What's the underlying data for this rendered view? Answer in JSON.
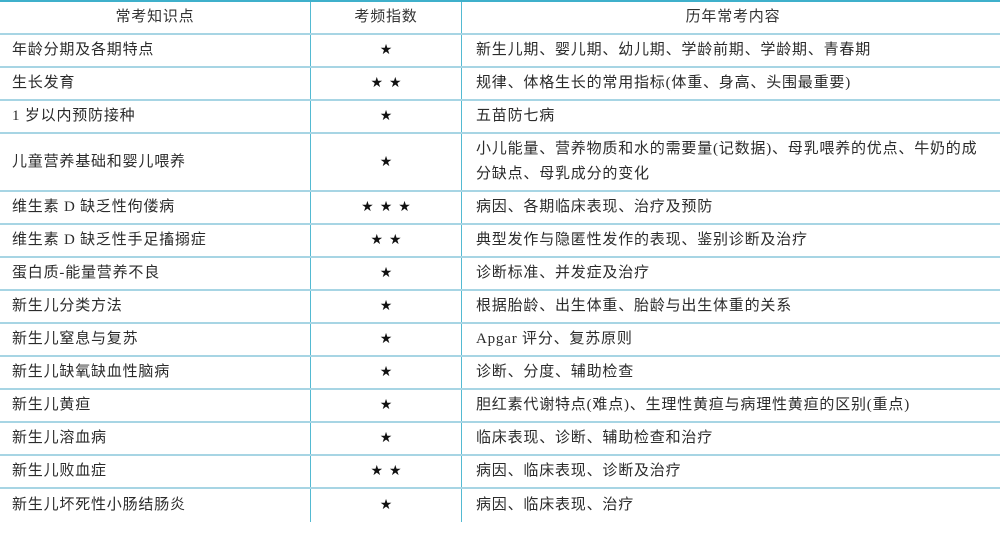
{
  "page": {
    "background": "#ffffff",
    "colors": {
      "border_top": "#3fb0cb",
      "border_horizontal": "#a7d5e4",
      "border_vertical": "#53bad2",
      "text": "#2b2b2b",
      "star": "#111111"
    }
  },
  "table": {
    "columns": [
      {
        "key": "topic",
        "label": "常考知识点"
      },
      {
        "key": "frequency",
        "label": "考频指数"
      },
      {
        "key": "content",
        "label": "历年常考内容"
      }
    ],
    "star_glyph": "★",
    "rows": [
      {
        "topic": "年龄分期及各期特点",
        "stars": "★",
        "content": "新生儿期、婴儿期、幼儿期、学龄前期、学龄期、青春期"
      },
      {
        "topic": "生长发育",
        "stars": "★★",
        "content": "规律、体格生长的常用指标(体重、身高、头围最重要)"
      },
      {
        "topic": "1 岁以内预防接种",
        "stars": "★",
        "content": "五苗防七病"
      },
      {
        "topic": "儿童营养基础和婴儿喂养",
        "stars": "★",
        "content": "小儿能量、营养物质和水的需要量(记数据)、母乳喂养的优点、牛奶的成分缺点、母乳成分的变化"
      },
      {
        "topic": "维生素 D 缺乏性佝偻病",
        "stars": "★★★",
        "content": "病因、各期临床表现、治疗及预防"
      },
      {
        "topic": "维生素 D 缺乏性手足搐搦症",
        "stars": "★★",
        "content": "典型发作与隐匿性发作的表现、鉴别诊断及治疗"
      },
      {
        "topic": "蛋白质-能量营养不良",
        "stars": "★",
        "content": "诊断标准、并发症及治疗"
      },
      {
        "topic": "新生儿分类方法",
        "stars": "★",
        "content": "根据胎龄、出生体重、胎龄与出生体重的关系"
      },
      {
        "topic": "新生儿窒息与复苏",
        "stars": "★",
        "content": "Apgar 评分、复苏原则"
      },
      {
        "topic": "新生儿缺氧缺血性脑病",
        "stars": "★",
        "content": "诊断、分度、辅助检查"
      },
      {
        "topic": "新生儿黄疸",
        "stars": "★",
        "content": "胆红素代谢特点(难点)、生理性黄疸与病理性黄疸的区别(重点)"
      },
      {
        "topic": "新生儿溶血病",
        "stars": "★",
        "content": "临床表现、诊断、辅助检查和治疗"
      },
      {
        "topic": "新生儿败血症",
        "stars": "★★",
        "content": "病因、临床表现、诊断及治疗"
      },
      {
        "topic": "新生儿坏死性小肠结肠炎",
        "stars": "★",
        "content": "病因、临床表现、治疗"
      }
    ]
  }
}
